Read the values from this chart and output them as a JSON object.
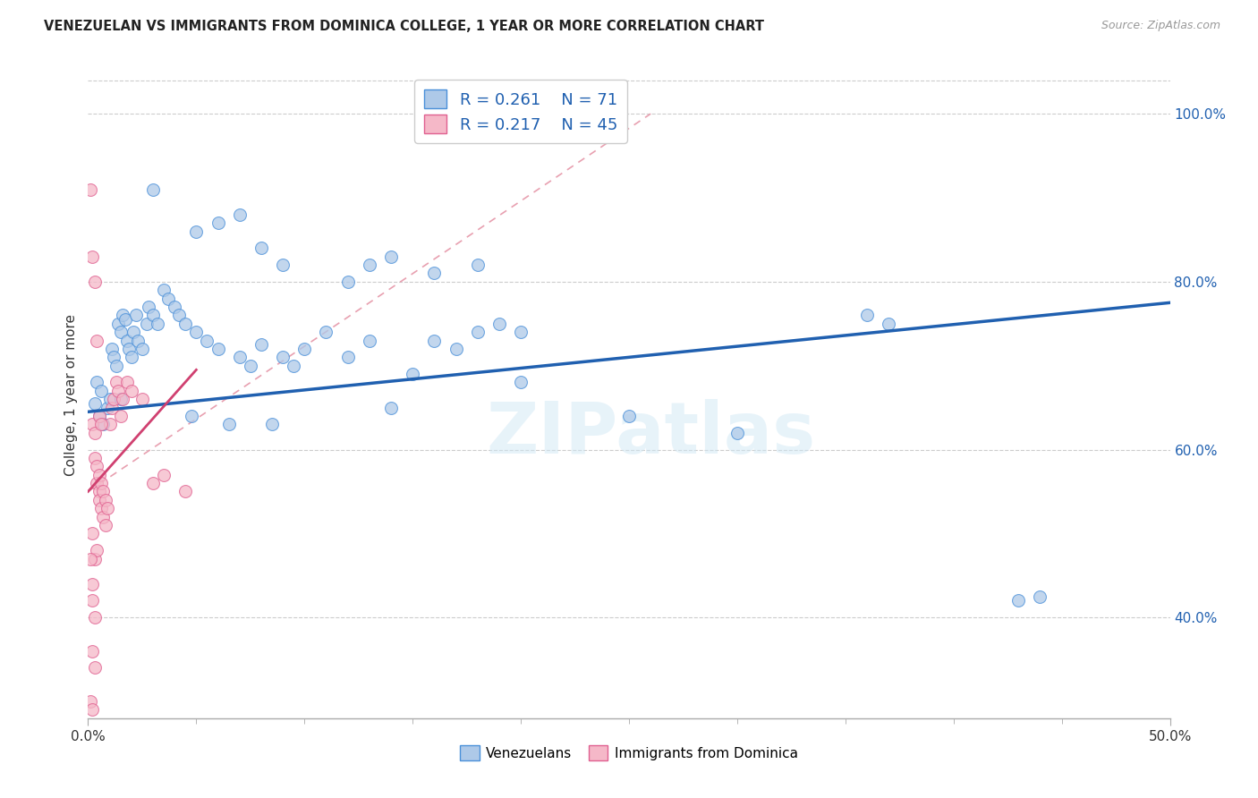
{
  "title": "VENEZUELAN VS IMMIGRANTS FROM DOMINICA COLLEGE, 1 YEAR OR MORE CORRELATION CHART",
  "source": "Source: ZipAtlas.com",
  "ylabel": "College, 1 year or more",
  "yticks": [
    40.0,
    60.0,
    80.0,
    100.0
  ],
  "xmin": 0.0,
  "xmax": 50.0,
  "ymin": 28.0,
  "ymax": 105.0,
  "watermark_text": "ZIPatlas",
  "legend_r1": "R = 0.261",
  "legend_n1": "N = 71",
  "legend_r2": "R = 0.217",
  "legend_n2": "N = 45",
  "blue_fill": "#aec9e8",
  "blue_edge": "#4a90d9",
  "pink_fill": "#f5b8c8",
  "pink_edge": "#e06090",
  "blue_line_color": "#2060b0",
  "pink_line_color": "#d04070",
  "pink_dash_color": "#e8a0b0",
  "blue_scatter": [
    [
      0.3,
      65.5
    ],
    [
      0.5,
      64.0
    ],
    [
      0.7,
      63.0
    ],
    [
      0.9,
      65.0
    ],
    [
      1.0,
      66.0
    ],
    [
      1.1,
      72.0
    ],
    [
      1.2,
      71.0
    ],
    [
      1.3,
      70.0
    ],
    [
      1.4,
      75.0
    ],
    [
      1.5,
      74.0
    ],
    [
      1.6,
      76.0
    ],
    [
      1.7,
      75.5
    ],
    [
      1.8,
      73.0
    ],
    [
      1.9,
      72.0
    ],
    [
      2.0,
      71.0
    ],
    [
      2.1,
      74.0
    ],
    [
      2.2,
      76.0
    ],
    [
      2.3,
      73.0
    ],
    [
      2.5,
      72.0
    ],
    [
      2.7,
      75.0
    ],
    [
      2.8,
      77.0
    ],
    [
      3.0,
      76.0
    ],
    [
      3.2,
      75.0
    ],
    [
      3.5,
      79.0
    ],
    [
      3.7,
      78.0
    ],
    [
      4.0,
      77.0
    ],
    [
      4.2,
      76.0
    ],
    [
      4.5,
      75.0
    ],
    [
      4.8,
      64.0
    ],
    [
      5.0,
      74.0
    ],
    [
      5.5,
      73.0
    ],
    [
      6.0,
      72.0
    ],
    [
      6.5,
      63.0
    ],
    [
      7.0,
      71.0
    ],
    [
      7.5,
      70.0
    ],
    [
      8.0,
      72.5
    ],
    [
      8.5,
      63.0
    ],
    [
      9.0,
      71.0
    ],
    [
      9.5,
      70.0
    ],
    [
      10.0,
      72.0
    ],
    [
      11.0,
      74.0
    ],
    [
      12.0,
      71.0
    ],
    [
      13.0,
      73.0
    ],
    [
      14.0,
      65.0
    ],
    [
      15.0,
      69.0
    ],
    [
      16.0,
      73.0
    ],
    [
      17.0,
      72.0
    ],
    [
      18.0,
      74.0
    ],
    [
      19.0,
      75.0
    ],
    [
      20.0,
      74.0
    ],
    [
      3.0,
      91.0
    ],
    [
      5.0,
      86.0
    ],
    [
      6.0,
      87.0
    ],
    [
      7.0,
      88.0
    ],
    [
      8.0,
      84.0
    ],
    [
      9.0,
      82.0
    ],
    [
      12.0,
      80.0
    ],
    [
      13.0,
      82.0
    ],
    [
      14.0,
      83.0
    ],
    [
      16.0,
      81.0
    ],
    [
      18.0,
      82.0
    ],
    [
      20.0,
      68.0
    ],
    [
      25.0,
      64.0
    ],
    [
      30.0,
      62.0
    ],
    [
      36.0,
      76.0
    ],
    [
      37.0,
      75.0
    ],
    [
      43.0,
      42.0
    ],
    [
      44.0,
      42.5
    ],
    [
      0.4,
      68.0
    ],
    [
      0.6,
      67.0
    ],
    [
      1.5,
      66.0
    ]
  ],
  "pink_scatter": [
    [
      0.2,
      63.0
    ],
    [
      0.3,
      62.0
    ],
    [
      0.3,
      59.0
    ],
    [
      0.4,
      58.0
    ],
    [
      0.4,
      56.0
    ],
    [
      0.5,
      57.0
    ],
    [
      0.5,
      55.0
    ],
    [
      0.5,
      54.0
    ],
    [
      0.6,
      56.0
    ],
    [
      0.6,
      53.0
    ],
    [
      0.7,
      55.0
    ],
    [
      0.7,
      52.0
    ],
    [
      0.8,
      54.0
    ],
    [
      0.8,
      51.0
    ],
    [
      0.9,
      53.0
    ],
    [
      1.0,
      63.0
    ],
    [
      1.1,
      65.0
    ],
    [
      1.2,
      66.0
    ],
    [
      1.3,
      68.0
    ],
    [
      1.4,
      67.0
    ],
    [
      1.5,
      64.0
    ],
    [
      1.6,
      66.0
    ],
    [
      1.8,
      68.0
    ],
    [
      2.0,
      67.0
    ],
    [
      2.5,
      66.0
    ],
    [
      3.0,
      56.0
    ],
    [
      3.5,
      57.0
    ],
    [
      4.5,
      55.0
    ],
    [
      0.1,
      91.0
    ],
    [
      0.2,
      83.0
    ],
    [
      0.3,
      80.0
    ],
    [
      0.4,
      73.0
    ],
    [
      0.2,
      50.0
    ],
    [
      0.3,
      47.0
    ],
    [
      0.4,
      48.0
    ],
    [
      0.1,
      47.0
    ],
    [
      0.2,
      44.0
    ],
    [
      0.2,
      42.0
    ],
    [
      0.3,
      40.0
    ],
    [
      0.2,
      36.0
    ],
    [
      0.3,
      34.0
    ],
    [
      0.1,
      30.0
    ],
    [
      0.2,
      29.0
    ],
    [
      0.5,
      64.0
    ],
    [
      0.6,
      63.0
    ]
  ],
  "blue_line_x0": 0.0,
  "blue_line_y0": 64.5,
  "blue_line_x1": 50.0,
  "blue_line_y1": 77.5,
  "pink_line_x0": 0.0,
  "pink_line_y0": 55.0,
  "pink_line_x1": 5.0,
  "pink_line_y1": 69.5,
  "pink_dash_x0": 0.0,
  "pink_dash_y0": 55.0,
  "pink_dash_x1": 26.0,
  "pink_dash_y1": 100.0
}
